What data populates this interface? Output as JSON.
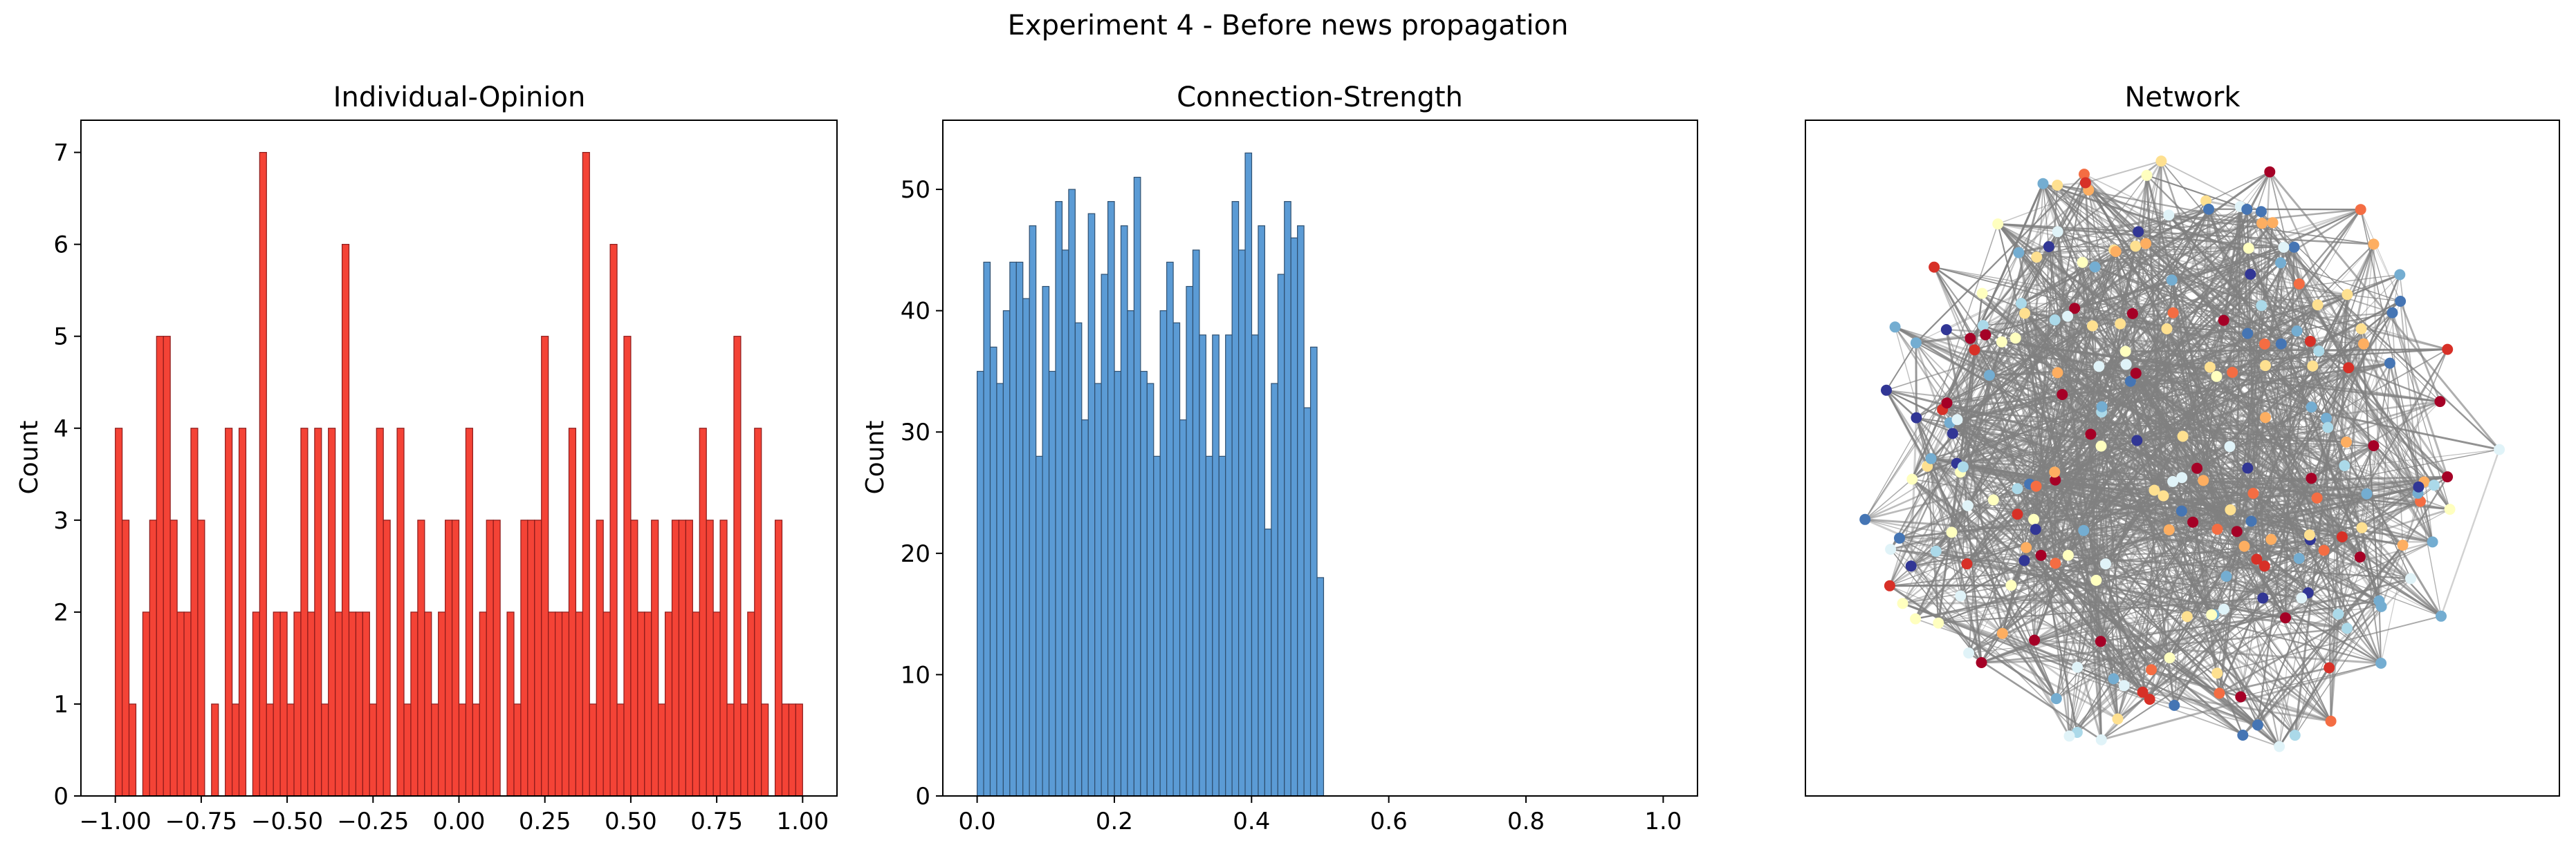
{
  "figure": {
    "suptitle": "Experiment 4 - Before news propagation"
  },
  "chart_data": [
    {
      "type": "bar",
      "title": "Individual-Opinion",
      "xlabel": "",
      "ylabel": "Count",
      "xlim": [
        -1.1,
        1.1
      ],
      "ylim": [
        0,
        7.35
      ],
      "xticks": [
        -1.0,
        -0.75,
        -0.5,
        -0.25,
        0.0,
        0.25,
        0.5,
        0.75,
        1.0
      ],
      "xtick_labels": [
        "−1.00",
        "−0.75",
        "−0.50",
        "−0.25",
        "0.00",
        "0.25",
        "0.50",
        "0.75",
        "1.00"
      ],
      "yticks": [
        0,
        1,
        2,
        3,
        4,
        5,
        6,
        7
      ],
      "bin_range": [
        -1.0,
        1.0
      ],
      "values": [
        4,
        3,
        1,
        0,
        2,
        3,
        5,
        5,
        3,
        2,
        2,
        4,
        3,
        0,
        1,
        0,
        4,
        1,
        4,
        0,
        2,
        7,
        1,
        2,
        2,
        1,
        2,
        4,
        2,
        4,
        1,
        4,
        2,
        6,
        2,
        2,
        2,
        1,
        4,
        3,
        0,
        4,
        1,
        2,
        3,
        2,
        1,
        2,
        3,
        3,
        1,
        4,
        1,
        2,
        3,
        3,
        0,
        2,
        1,
        3,
        3,
        3,
        5,
        2,
        2,
        2,
        4,
        2,
        7,
        1,
        3,
        2,
        6,
        1,
        5,
        3,
        2,
        2,
        3,
        1,
        2,
        3,
        3,
        3,
        2,
        4,
        3,
        2,
        3,
        1,
        5,
        1,
        2,
        4,
        1,
        0,
        3,
        1,
        1,
        1
      ],
      "bar_color": "#f44336",
      "edge_color": "#8b1a1a"
    },
    {
      "type": "bar",
      "title": "Connection-Strength",
      "xlabel": "",
      "ylabel": "Count",
      "xlim": [
        -0.05,
        1.05
      ],
      "ylim": [
        0,
        55.7
      ],
      "xticks": [
        0.0,
        0.2,
        0.4,
        0.6,
        0.8,
        1.0
      ],
      "xtick_labels": [
        "0.0",
        "0.2",
        "0.4",
        "0.6",
        "0.8",
        "1.0"
      ],
      "yticks": [
        0,
        10,
        20,
        30,
        40,
        50
      ],
      "bin_range": [
        0.0,
        0.505
      ],
      "values": [
        35,
        44,
        37,
        34,
        40,
        44,
        44,
        41,
        47,
        28,
        42,
        35,
        49,
        45,
        50,
        39,
        31,
        48,
        34,
        43,
        49,
        35,
        47,
        40,
        51,
        35,
        34,
        28,
        40,
        44,
        39,
        31,
        42,
        45,
        38,
        28,
        38,
        28,
        38,
        49,
        45,
        53,
        38,
        47,
        22,
        34,
        43,
        49,
        46,
        47,
        32,
        37,
        18
      ],
      "bar_color": "#5b9bd5",
      "edge_color": "#2f4f6f"
    },
    {
      "type": "network",
      "title": "Network",
      "node_colors": [
        "#d73027",
        "#f46d43",
        "#fdae61",
        "#fee090",
        "#ffffbf",
        "#e0f3f8",
        "#abd9e9",
        "#74add1",
        "#4575b4",
        "#313695",
        "#a50026"
      ],
      "edge_color": "#808080"
    }
  ]
}
